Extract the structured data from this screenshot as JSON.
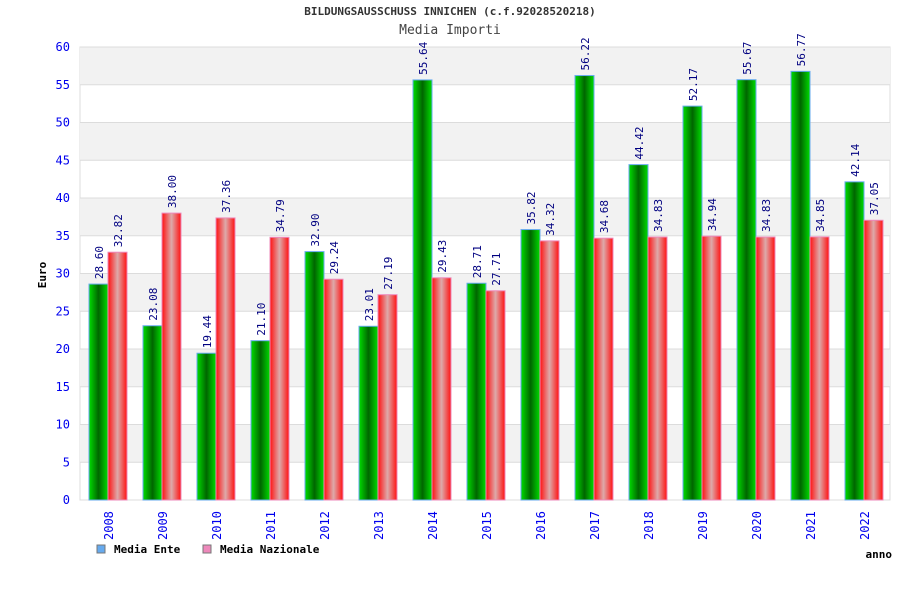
{
  "chart_data": {
    "type": "bar",
    "title": "BILDUNGSAUSSCHUSS INNICHEN (c.f.92028520218)",
    "subtitle": "Media Importi",
    "xlabel": "anno",
    "ylabel": "Euro",
    "ylim": [
      0,
      60
    ],
    "yticks": [
      0,
      5,
      10,
      15,
      20,
      25,
      30,
      35,
      40,
      45,
      50,
      55,
      60
    ],
    "grid": true,
    "legend_position": "bottom-left",
    "categories": [
      "2008",
      "2009",
      "2010",
      "2011",
      "2012",
      "2013",
      "2014",
      "2015",
      "2016",
      "2017",
      "2018",
      "2019",
      "2020",
      "2021",
      "2022"
    ],
    "series": [
      {
        "name": "Media Ente",
        "legend_color": "#66aaee",
        "values": [
          28.6,
          23.08,
          19.44,
          21.1,
          32.9,
          23.01,
          55.64,
          28.71,
          35.82,
          56.22,
          44.42,
          52.17,
          55.67,
          56.77,
          42.14
        ]
      },
      {
        "name": "Media Nazionale",
        "legend_color": "#ee88bb",
        "values": [
          32.82,
          38.0,
          37.36,
          34.79,
          29.24,
          27.19,
          29.43,
          27.71,
          34.32,
          34.68,
          34.83,
          34.94,
          34.83,
          34.85,
          37.05
        ]
      }
    ]
  }
}
